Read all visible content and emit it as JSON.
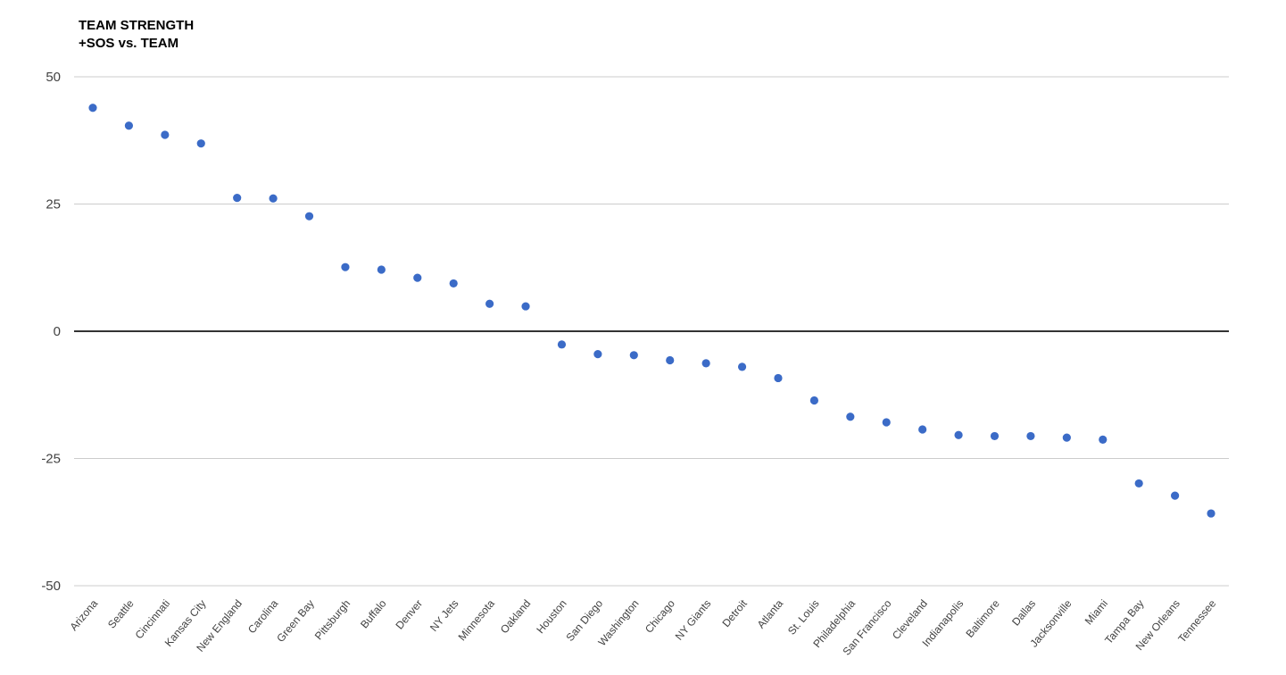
{
  "chart": {
    "title_line1": "TEAM STRENGTH",
    "title_line2": "+SOS vs. TEAM"
  },
  "chart_data": {
    "type": "scatter",
    "title": "TEAM STRENGTH +SOS vs. TEAM",
    "xlabel": "",
    "ylabel": "",
    "categories": [
      "Arizona",
      "Seattle",
      "Cincinnati",
      "Kansas City",
      "New England",
      "Carolina",
      "Green Bay",
      "Pittsburgh",
      "Buffalo",
      "Denver",
      "NY Jets",
      "Minnesota",
      "Oakland",
      "Houston",
      "San Diego",
      "Washington",
      "Chicago",
      "NY Giants",
      "Detroit",
      "Atlanta",
      "St. Louis",
      "Philadelphia",
      "San Francisco",
      "Cleveland",
      "Indianapolis",
      "Baltimore",
      "Dallas",
      "Jacksonville",
      "Miami",
      "Tampa Bay",
      "New Orleans",
      "Tennessee"
    ],
    "values": [
      43.9,
      40.4,
      38.6,
      36.9,
      26.2,
      26.1,
      22.6,
      12.6,
      12.1,
      10.5,
      9.4,
      5.4,
      4.9,
      -2.6,
      -4.5,
      -4.7,
      -5.7,
      -6.3,
      -7.0,
      -9.2,
      -13.6,
      -16.8,
      -17.9,
      -19.3,
      -20.4,
      -20.6,
      -20.6,
      -20.9,
      -21.3,
      -29.9,
      -32.3,
      -35.8
    ],
    "ylim": [
      -50,
      50
    ],
    "yticks": [
      50,
      25,
      0,
      -25,
      -50
    ],
    "grid": true,
    "legend": "none",
    "point_color": "#3B6BC7",
    "gridline_color": "#CCCCCC",
    "baseline_color": "#333333",
    "axis_label_color": "#424242"
  }
}
